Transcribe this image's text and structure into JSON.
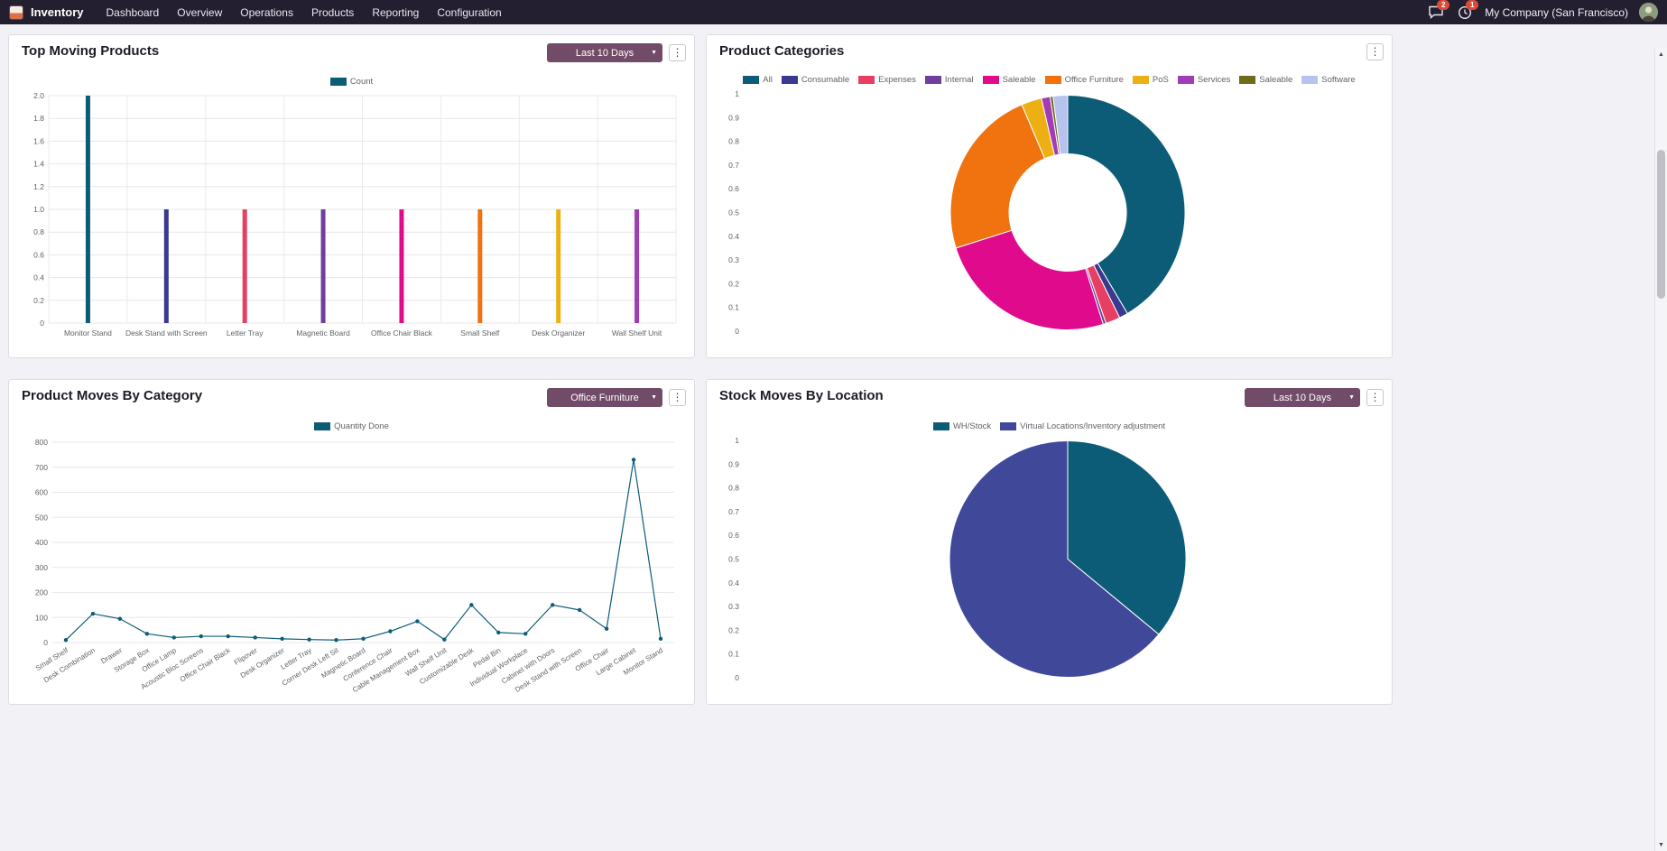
{
  "colors": {
    "nav_bg": "#241f30",
    "accent": "#714b67",
    "badge": "#dc4b37",
    "page_bg": "#f2f1f5",
    "teal": "#0d5c77",
    "indigo": "#39398f"
  },
  "nav": {
    "app_name": "Inventory",
    "menu_items": [
      "Dashboard",
      "Overview",
      "Operations",
      "Products",
      "Reporting",
      "Configuration"
    ],
    "messages_badge": "2",
    "activities_badge": "1",
    "company": "My Company (San Francisco)"
  },
  "scroll": {
    "up_arrow": "▲",
    "down_arrow": "▼"
  },
  "cards": [
    {
      "title": "Top Moving Products",
      "filter_label": "Last 10 Days",
      "kebab": "⋮",
      "chart_data": {
        "type": "bar",
        "title": "Top Moving Products",
        "legend": [
          {
            "label": "Count",
            "color": "#0d5c77"
          }
        ],
        "categories": [
          "Monitor Stand",
          "Desk Stand with Screen",
          "Letter Tray",
          "Magnetic Board",
          "Office Chair Black",
          "Small Shelf",
          "Desk Organizer",
          "Wall Shelf Unit"
        ],
        "values": [
          2,
          1,
          1,
          1,
          1,
          1,
          1,
          1
        ],
        "bar_colors": [
          "#0d5c77",
          "#39398f",
          "#e73e63",
          "#6f3f9d",
          "#df0a8c",
          "#f0730f",
          "#edb014",
          "#a23cb4"
        ],
        "ylim": [
          0,
          2
        ],
        "ytick_step": 0.2,
        "grid": true,
        "legend_position": "top"
      }
    },
    {
      "title": "Product Categories",
      "kebab": "⋮",
      "chart_data": {
        "type": "donut",
        "title": "Product Categories",
        "labels": [
          "All",
          "Consumable",
          "Expenses",
          "Internal",
          "Saleable",
          "Office Furniture",
          "PoS",
          "Services",
          "Saleable",
          "Software"
        ],
        "values": [
          41.5,
          1.2,
          2,
          0.4,
          25,
          23.5,
          2.8,
          1.2,
          0.4,
          2
        ],
        "colors": [
          "#0d5c77",
          "#39398f",
          "#e73e63",
          "#6f3f9d",
          "#df0a8c",
          "#f0730f",
          "#edb014",
          "#a23cb4",
          "#6c6c1e",
          "#b8c2ee"
        ],
        "axis": {
          "ylim": [
            0,
            1
          ],
          "ytick_step": 0.1
        },
        "legend_position": "top"
      }
    },
    {
      "title": "Product Moves By Category",
      "filter_label": "Office Furniture",
      "kebab": "⋮",
      "chart_data": {
        "type": "line",
        "title": "Product Moves By Category",
        "legend": [
          {
            "label": "Quantity Done",
            "color": "#0d5c77"
          }
        ],
        "categories": [
          "Small Shelf",
          "Desk Combination",
          "Drawer",
          "Storage Box",
          "Office Lamp",
          "Acoustic Bloc Screens",
          "Office Chair Black",
          "Flipover",
          "Desk Organizer",
          "Letter Tray",
          "Corner Desk Left Sit",
          "Magnetic Board",
          "Conference Chair",
          "Cable Management Box",
          "Wall Shelf Unit",
          "Customizable Desk",
          "Pedal Bin",
          "Individual Workplace",
          "Cabinet with Doors",
          "Desk Stand with Screen",
          "Office Chair",
          "Large Cabinet",
          "Monitor Stand"
        ],
        "values": [
          10,
          115,
          95,
          35,
          20,
          25,
          25,
          20,
          15,
          12,
          10,
          15,
          45,
          85,
          12,
          150,
          40,
          35,
          150,
          130,
          55,
          730,
          15
        ],
        "line_color": "#0d5c77",
        "ylim": [
          0,
          800
        ],
        "ytick_step": 100,
        "grid": true,
        "legend_position": "top"
      }
    },
    {
      "title": "Stock Moves By Location",
      "filter_label": "Last 10 Days",
      "kebab": "⋮",
      "chart_data": {
        "type": "pie",
        "title": "Stock Moves By Location",
        "labels": [
          "WH/Stock",
          "Virtual Locations/Inventory adjustment"
        ],
        "values": [
          36,
          64
        ],
        "colors": [
          "#0d5c77",
          "#3f4899"
        ],
        "axis": {
          "ylim": [
            0,
            1
          ],
          "ytick_step": 0.1
        },
        "legend_position": "top"
      }
    }
  ]
}
